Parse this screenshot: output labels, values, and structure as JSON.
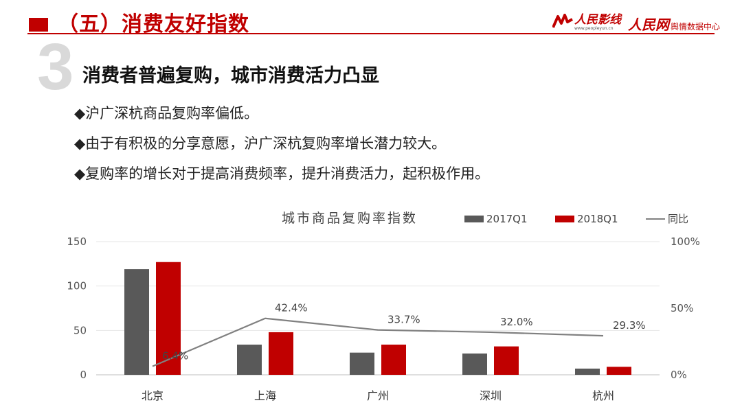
{
  "header": {
    "title": "（五）消费友好指数",
    "logo_left_name": "人民影线",
    "logo_left_url": "www.peopleyun.cn",
    "logo_right_name": "人民网",
    "logo_right_sub": "舆情数据中心"
  },
  "section": {
    "number": "3",
    "title": "消费者普遍复购，城市消费活力凸显",
    "bullets": [
      "◆沪广深杭商品复购率偏低。",
      "◆由于有积极的分享意愿，沪广深杭复购率增长潜力较大。",
      "◆复购率的增长对于提高消费频率，提升消费活力，起积极作用。"
    ]
  },
  "colors": {
    "accent": "#c00000",
    "series_2017": "#595959",
    "series_2018": "#c00000",
    "line": "#808080"
  },
  "chart_data": {
    "type": "bar",
    "title": "城市商品复购率指数",
    "categories": [
      "北京",
      "上海",
      "广州",
      "深圳",
      "杭州"
    ],
    "series": [
      {
        "name": "2017Q1",
        "type": "bar",
        "axis": "left",
        "values": [
          119,
          34,
          25,
          24,
          7
        ]
      },
      {
        "name": "2018Q1",
        "type": "bar",
        "axis": "left",
        "values": [
          127,
          48,
          34,
          32,
          9
        ]
      },
      {
        "name": "同比",
        "type": "line",
        "axis": "right",
        "values": [
          6.4,
          42.4,
          33.7,
          32.0,
          29.3
        ],
        "labels": [
          "6.4%",
          "42.4%",
          "33.7%",
          "32.0%",
          "29.3%"
        ]
      }
    ],
    "ylim_left": [
      0,
      150
    ],
    "yticks_left": [
      "0",
      "50",
      "100",
      "150"
    ],
    "ylim_right": [
      0,
      100
    ],
    "yticks_right": [
      "0%",
      "50%",
      "100%"
    ],
    "legend_position": "top-right",
    "grid": true
  }
}
